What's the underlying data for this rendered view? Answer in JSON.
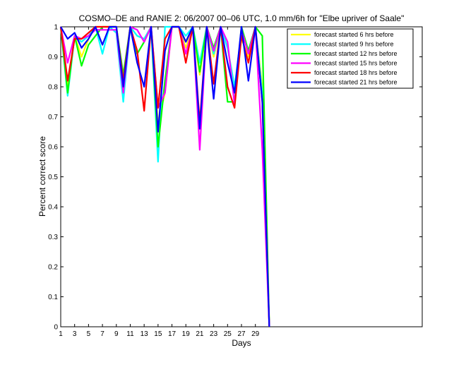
{
  "chart_data": {
    "type": "line",
    "title": "COSMO–DE and RANIE 2: 06/2007 00–06 UTC, 1.0 mm/6h for \"Elbe upriver of Saale\"",
    "xlabel": "Days",
    "ylabel": "Percent correct score",
    "xlim": [
      1,
      53
    ],
    "ylim": [
      0,
      1
    ],
    "xticks": [
      1,
      3,
      5,
      7,
      9,
      11,
      13,
      15,
      17,
      19,
      21,
      23,
      25,
      27,
      29
    ],
    "yticks": [
      0,
      0.1,
      0.2,
      0.3,
      0.4,
      0.5,
      0.6,
      0.7,
      0.8,
      0.9,
      1
    ],
    "legend_position": "top-right",
    "grid": false,
    "x": [
      1,
      2,
      3,
      4,
      5,
      6,
      7,
      8,
      9,
      10,
      11,
      12,
      13,
      14,
      15,
      16,
      17,
      18,
      19,
      20,
      21,
      22,
      23,
      24,
      25,
      26,
      27,
      28,
      29,
      30,
      31
    ],
    "series": [
      {
        "name": "forecast started 6 hrs before",
        "color": "#ffff00",
        "values": [
          1,
          0.8,
          0.97,
          0.9,
          0.96,
          1,
          1,
          1,
          1,
          0.82,
          1,
          0.97,
          0.96,
          1,
          0.68,
          0.78,
          1,
          1,
          0.93,
          1,
          0.84,
          1,
          0.9,
          1,
          0.93,
          0.8,
          0.96,
          0.9,
          1,
          0.8,
          0
        ]
      },
      {
        "name": "forecast started 9 hrs before",
        "color": "#00ffff",
        "values": [
          1,
          0.77,
          0.97,
          0.95,
          0.97,
          1,
          0.91,
          1,
          0.98,
          0.75,
          1,
          0.97,
          0.96,
          1,
          0.55,
          1,
          1,
          1,
          0.97,
          1,
          0.88,
          1,
          0.91,
          1,
          0.93,
          0.8,
          0.98,
          0.92,
          1,
          0.78,
          0
        ]
      },
      {
        "name": "forecast started 12 hrs before",
        "color": "#00ff00",
        "values": [
          1,
          0.78,
          0.97,
          0.87,
          0.94,
          0.97,
          1,
          1,
          1,
          0.84,
          1,
          0.91,
          0.95,
          1,
          0.6,
          0.82,
          1,
          1,
          0.95,
          1,
          0.85,
          1,
          0.93,
          1,
          0.75,
          0.75,
          1,
          0.92,
          1,
          0.97,
          0
        ]
      },
      {
        "name": "forecast started 15 hrs before",
        "color": "#ff00ff",
        "values": [
          1,
          0.88,
          0.97,
          0.96,
          0.97,
          0.99,
          0.99,
          0.99,
          0.99,
          0.78,
          1,
          0.99,
          0.95,
          1,
          0.73,
          0.78,
          1,
          1,
          0.91,
          1,
          0.59,
          1,
          0.92,
          1,
          0.95,
          0.74,
          0.99,
          0.91,
          1,
          0.59,
          0
        ]
      },
      {
        "name": "forecast started 18 hrs before",
        "color": "#ff0000",
        "values": [
          1,
          0.82,
          0.96,
          0.96,
          0.98,
          1,
          1,
          1,
          1,
          0.82,
          1,
          0.92,
          0.72,
          1,
          0.73,
          0.96,
          1,
          1,
          0.88,
          1,
          0.68,
          1,
          0.81,
          1,
          0.8,
          0.73,
          0.97,
          0.88,
          1,
          0.75,
          0
        ]
      },
      {
        "name": "forecast started 21 hrs before",
        "color": "#0000ff",
        "values": [
          1,
          0.96,
          0.98,
          0.93,
          0.96,
          1,
          0.94,
          1,
          1,
          0.8,
          1,
          0.88,
          0.8,
          1,
          0.65,
          0.92,
          1,
          1,
          0.95,
          1,
          0.66,
          1,
          0.76,
          1,
          0.88,
          0.78,
          1,
          0.82,
          1,
          0.75,
          0
        ]
      }
    ]
  }
}
